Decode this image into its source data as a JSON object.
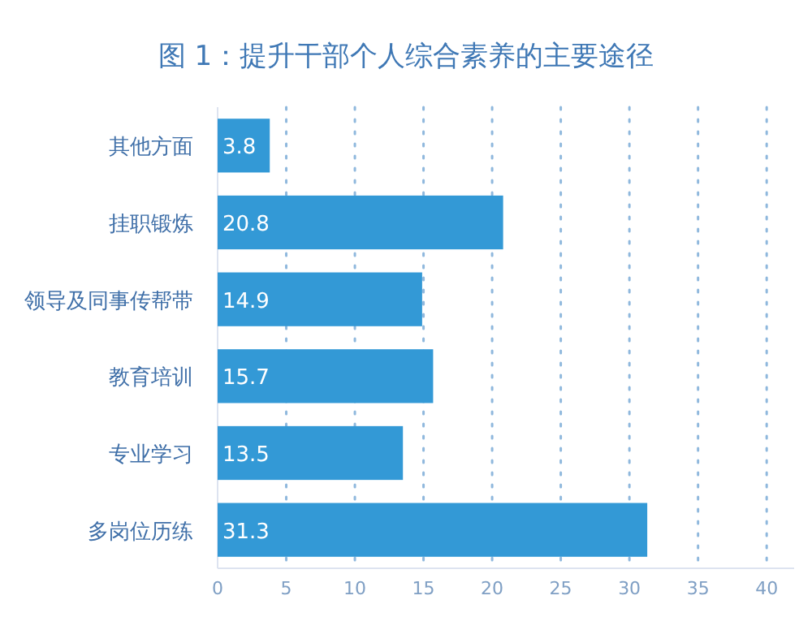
{
  "chart_data": {
    "type": "bar",
    "orientation": "horizontal",
    "title": "图 1：提升干部个人综合素养的主要途径",
    "categories": [
      "其他方面",
      "挂职锻炼",
      "领导及同事传帮带",
      "教育培训",
      "专业学习",
      "多岗位历练"
    ],
    "values": [
      3.8,
      20.8,
      14.9,
      15.7,
      13.5,
      31.3
    ],
    "color": "#3399d6",
    "xlim": [
      0,
      42
    ],
    "xticks": [
      0,
      5,
      10,
      15,
      20,
      25,
      30,
      35,
      40
    ],
    "grid": "x",
    "data_labels": true
  }
}
